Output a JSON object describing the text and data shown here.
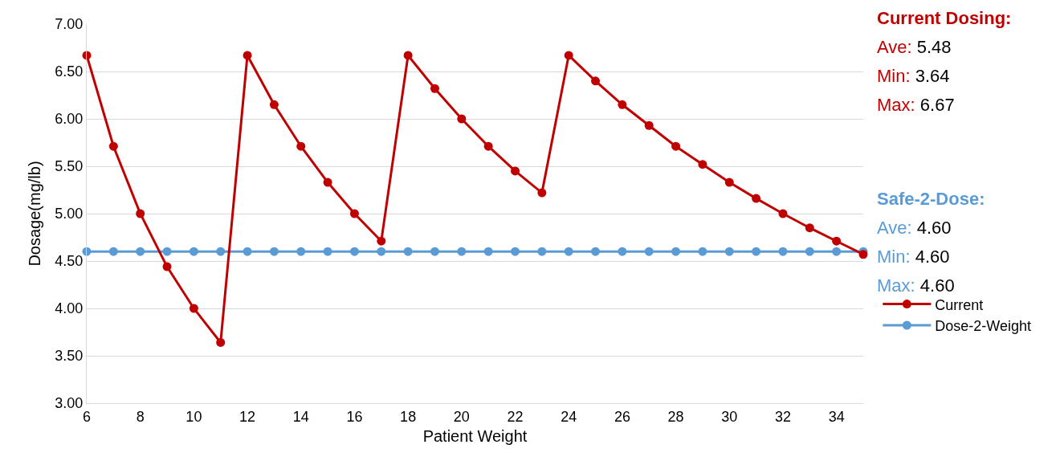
{
  "chart_data": {
    "type": "line",
    "xlabel": "Patient Weight",
    "ylabel": "Dosage(mg/lb)",
    "x": [
      6,
      7,
      8,
      9,
      10,
      11,
      12,
      13,
      14,
      15,
      16,
      17,
      18,
      19,
      20,
      21,
      22,
      23,
      24,
      25,
      26,
      27,
      28,
      29,
      30,
      31,
      32,
      33,
      34,
      35
    ],
    "series": [
      {
        "name": "Current",
        "color": "#c00000",
        "values": [
          6.67,
          5.71,
          5.0,
          4.44,
          4.0,
          3.64,
          6.67,
          6.15,
          5.71,
          5.33,
          5.0,
          4.71,
          6.67,
          6.32,
          6.0,
          5.71,
          5.45,
          5.22,
          6.67,
          6.4,
          6.15,
          5.93,
          5.71,
          5.52,
          5.33,
          5.16,
          5.0,
          4.85,
          4.71,
          4.57
        ]
      },
      {
        "name": "Dose-2-Weight",
        "color": "#5b9bd5",
        "values": [
          4.6,
          4.6,
          4.6,
          4.6,
          4.6,
          4.6,
          4.6,
          4.6,
          4.6,
          4.6,
          4.6,
          4.6,
          4.6,
          4.6,
          4.6,
          4.6,
          4.6,
          4.6,
          4.6,
          4.6,
          4.6,
          4.6,
          4.6,
          4.6,
          4.6,
          4.6,
          4.6,
          4.6,
          4.6,
          4.6
        ]
      }
    ],
    "xlim": [
      6,
      35
    ],
    "xticks": [
      6,
      8,
      10,
      12,
      14,
      16,
      18,
      20,
      22,
      24,
      26,
      28,
      30,
      32,
      34
    ],
    "ylim": [
      3,
      7
    ],
    "yticks": [
      {
        "value": 3,
        "label": "3.00"
      },
      {
        "value": 3.5,
        "label": "3.50"
      },
      {
        "value": 4,
        "label": "4.00"
      },
      {
        "value": 4.5,
        "label": "4.50"
      },
      {
        "value": 5,
        "label": "5.00"
      },
      {
        "value": 5.5,
        "label": "5.50"
      },
      {
        "value": 6,
        "label": "6.00"
      },
      {
        "value": 6.5,
        "label": "6.50"
      },
      {
        "value": 7,
        "label": "7.00"
      }
    ],
    "grid": "y",
    "legend": "right",
    "marker": "circle",
    "line_style": "solid",
    "annotations": [
      "Current Dosing:",
      "Ave: 5.48",
      "Min: 3.64",
      "Max: 6.67",
      "Safe-2-Dose:",
      "Ave: 4.60",
      "Min: 4.60",
      "Max: 4.60"
    ]
  }
}
